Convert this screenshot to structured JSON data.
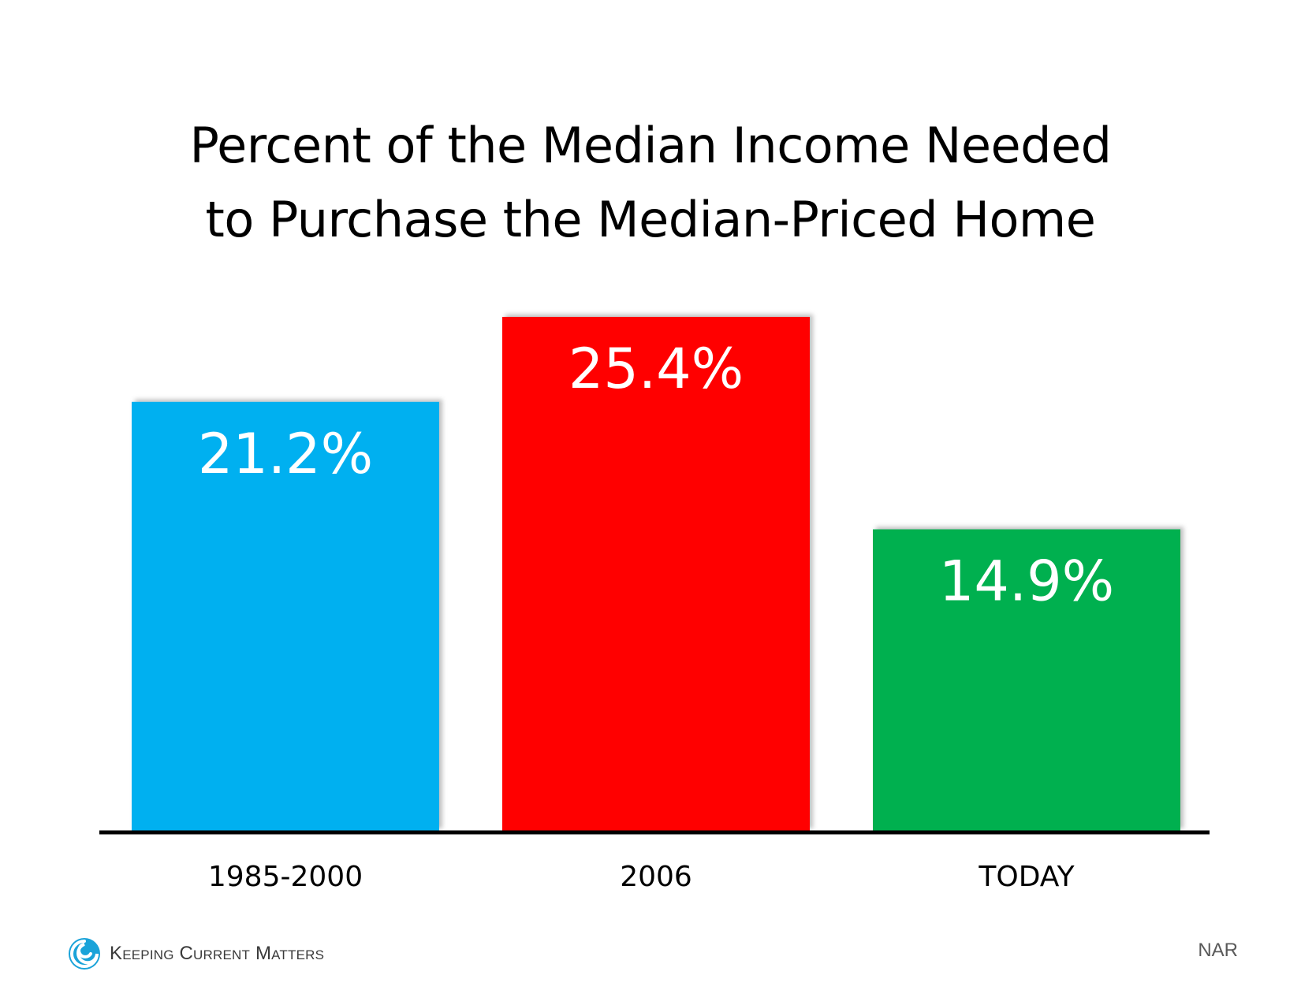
{
  "title": {
    "line1": "Percent of the Median Income Needed",
    "line2": "to Purchase the Median-Priced Home"
  },
  "chart_data": {
    "type": "bar",
    "title": "Percent of the Median Income Needed to Purchase the Median-Priced Home",
    "categories": [
      "1985-2000",
      "2006",
      "TODAY"
    ],
    "values": [
      21.2,
      25.4,
      14.9
    ],
    "data_labels": [
      "21.2%",
      "25.4%",
      "14.9%"
    ],
    "colors": [
      "#00B0F0",
      "#FF0000",
      "#00B050"
    ],
    "ylim": [
      0,
      25.4
    ],
    "grid": false,
    "legend": "none"
  },
  "footer": {
    "brand": "Keeping Current Matters",
    "logo_icon": "swirl-logo-icon",
    "source": "NAR"
  }
}
